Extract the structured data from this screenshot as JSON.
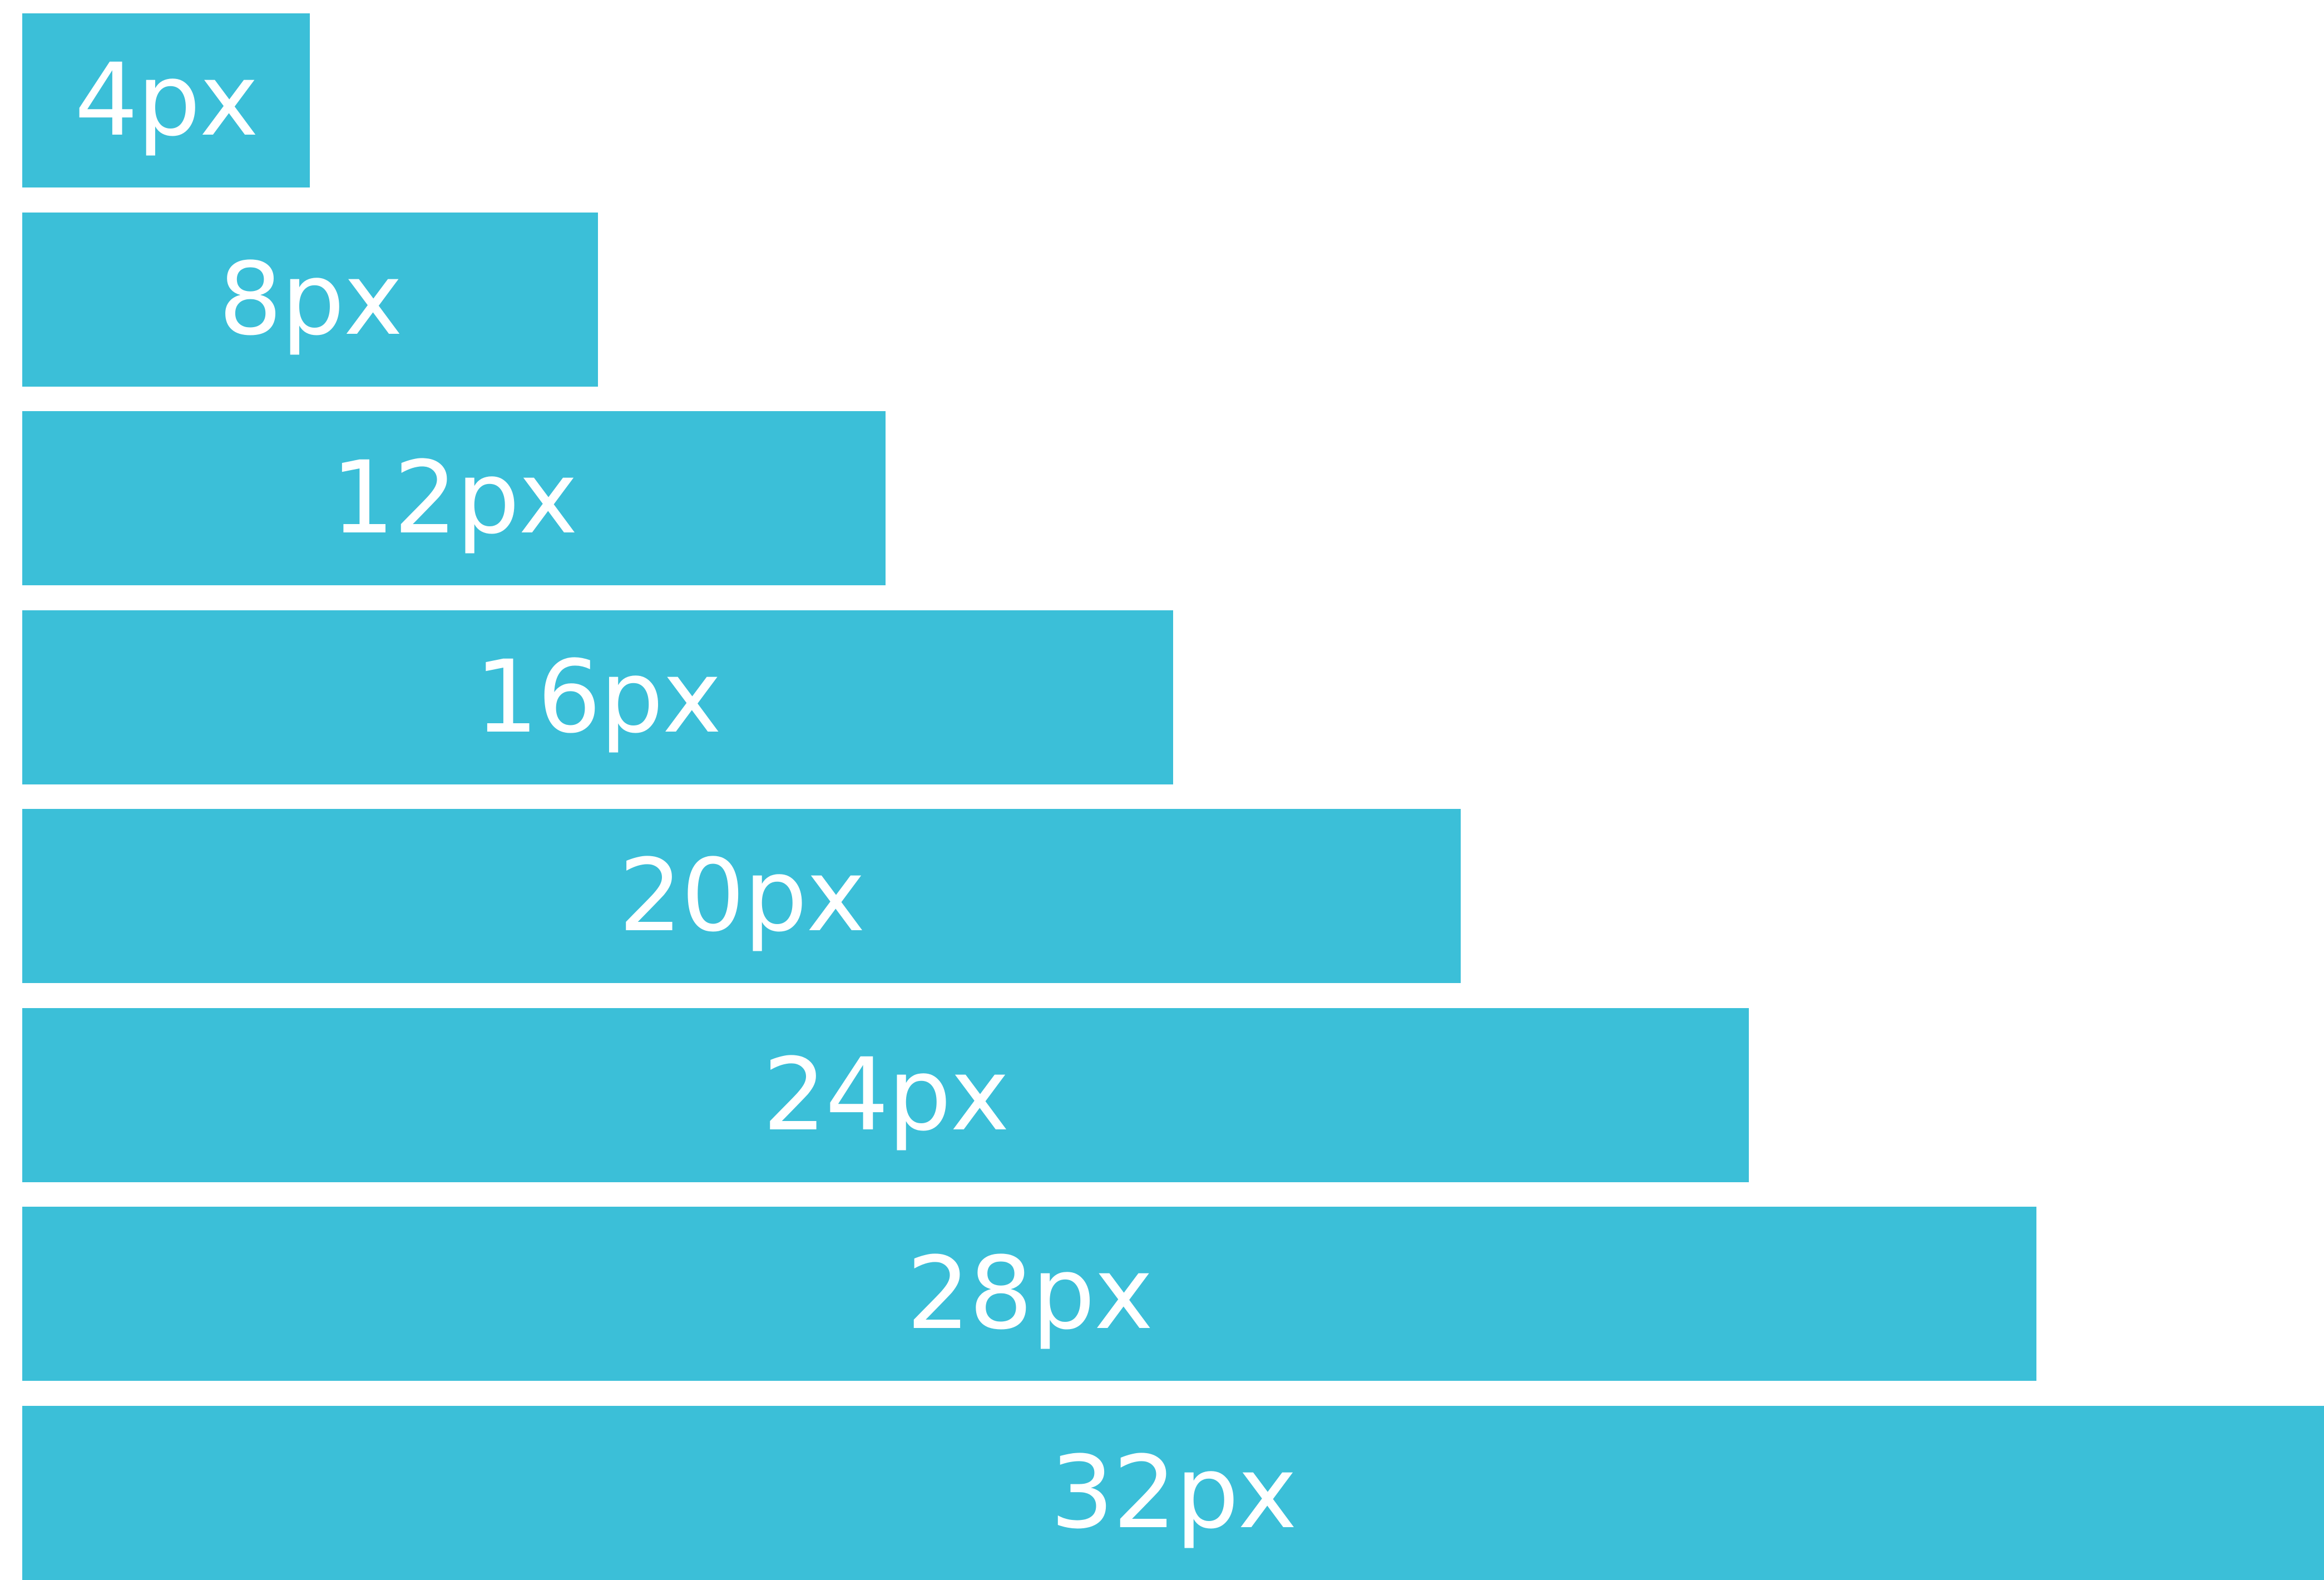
{
  "chart_data": {
    "type": "bar",
    "orientation": "horizontal",
    "categories": [
      "4px",
      "8px",
      "12px",
      "16px",
      "20px",
      "24px",
      "28px",
      "32px"
    ],
    "values": [
      4,
      8,
      12,
      16,
      20,
      24,
      28,
      32
    ],
    "data_labels": [
      "4px",
      "8px",
      "12px",
      "16px",
      "20px",
      "24px",
      "28px",
      "32px"
    ],
    "title": "",
    "xlabel": "",
    "ylabel": "",
    "xlim": [
      0,
      32
    ],
    "grid": false,
    "legend": "none"
  },
  "colors": {
    "bar": "#3bbfd8",
    "label": "#ffffff",
    "background": "#ffffff"
  }
}
